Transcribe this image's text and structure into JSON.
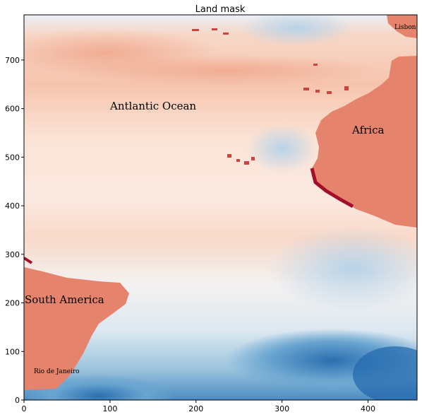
{
  "figure": {
    "title": "Land mask"
  },
  "colors": {
    "land": "#e5836c",
    "ocean_warm": "#f6c7b2",
    "ocean_mid": "#fbe6dc",
    "ocean_neutral": "#f5f1f0",
    "ocean_cool": "#cfe1ee",
    "ocean_cold": "#2166ac",
    "coast_dark": "#a30f2b"
  },
  "map_labels": {
    "atlantic_ocean": "Antlantic Ocean",
    "africa": "Africa",
    "south_america": "South America",
    "lisbon": "Lisbon",
    "rio": "Rio de Janeiro"
  },
  "chart_data": {
    "type": "heatmap",
    "title": "Land mask",
    "xlabel": "",
    "ylabel": "",
    "xlim": [
      0,
      457
    ],
    "ylim": [
      0,
      793
    ],
    "x_ticks": [
      0,
      100,
      200,
      300,
      400
    ],
    "y_ticks": [
      0,
      100,
      200,
      300,
      400,
      500,
      600,
      700
    ],
    "colormap": "RdBu_r",
    "grid": false,
    "annotations": [
      {
        "text": "Antlantic Ocean",
        "x": 100,
        "y": 600
      },
      {
        "text": "Africa",
        "x": 380,
        "y": 550
      },
      {
        "text": "South America",
        "x": 0,
        "y": 205
      },
      {
        "text": "Lisbon",
        "x": 430,
        "y": 765
      },
      {
        "text": "Rio de Janeiro",
        "x": 12,
        "y": 55
      }
    ]
  }
}
